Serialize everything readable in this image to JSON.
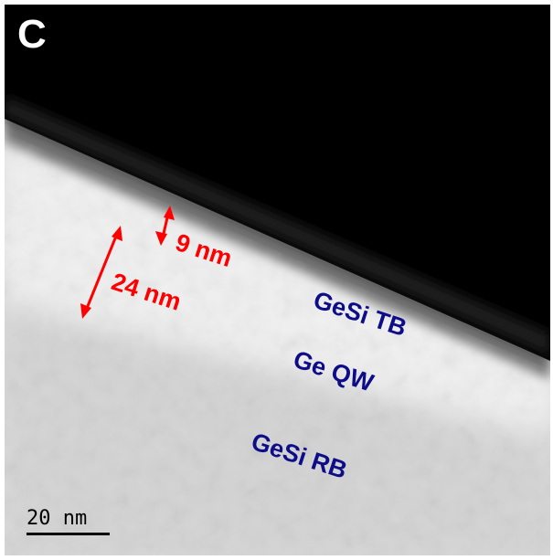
{
  "panel_label": "C",
  "measurements": {
    "top_barrier_thickness": "9 nm",
    "well_region_thickness": "24 nm"
  },
  "layers": {
    "top_barrier": "GeSi TB",
    "quantum_well": "Ge QW",
    "relaxed_buffer": "GeSi RB"
  },
  "scale_bar": {
    "label": "20 nm"
  },
  "colors": {
    "measurement": "#ff0000",
    "layer_label": "#0d0d8a",
    "background_dark": "#000000"
  }
}
